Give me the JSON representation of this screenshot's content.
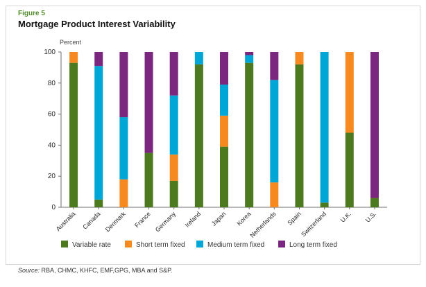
{
  "figure_label": "Figure 5",
  "title": "Mortgage Product Interest Variability",
  "source_label": "Source:",
  "source_text": "RBA, CHMC, KHFC, EMF,GPG, MBA and S&P.",
  "colors": {
    "variable": "#4d7a1f",
    "short": "#f6891f",
    "medium": "#00a6d6",
    "long": "#7b267f",
    "axis": "#6d6e71",
    "text": "#231f20"
  },
  "chart_data": {
    "type": "bar",
    "stacked": true,
    "ylabel": "Percent",
    "ylim": [
      0,
      100
    ],
    "yticks": [
      0,
      20,
      40,
      60,
      80,
      100
    ],
    "grid": false,
    "legend_position": "bottom",
    "categories": [
      "Australia",
      "Canada",
      "Denmark",
      "France",
      "Germany",
      "Ireland",
      "Japan",
      "Korea",
      "Netherlands",
      "Spain",
      "Switzerland",
      "U.K.",
      "U.S."
    ],
    "series": [
      {
        "name": "Variable rate",
        "color_key": "variable",
        "values": [
          93,
          5,
          0,
          35,
          17,
          92,
          39,
          93,
          0,
          92,
          3,
          48,
          6
        ]
      },
      {
        "name": "Short term fixed",
        "color_key": "short",
        "values": [
          7,
          0,
          18,
          0,
          17,
          0,
          20,
          0,
          16,
          8,
          0,
          52,
          0
        ]
      },
      {
        "name": "Medium term fixed",
        "color_key": "medium",
        "values": [
          0,
          86,
          40,
          0,
          38,
          8,
          20,
          5,
          66,
          0,
          97,
          0,
          0
        ]
      },
      {
        "name": "Long term fixed",
        "color_key": "long",
        "values": [
          0,
          9,
          42,
          65,
          28,
          0,
          21,
          2,
          18,
          0,
          0,
          0,
          94
        ]
      }
    ]
  }
}
